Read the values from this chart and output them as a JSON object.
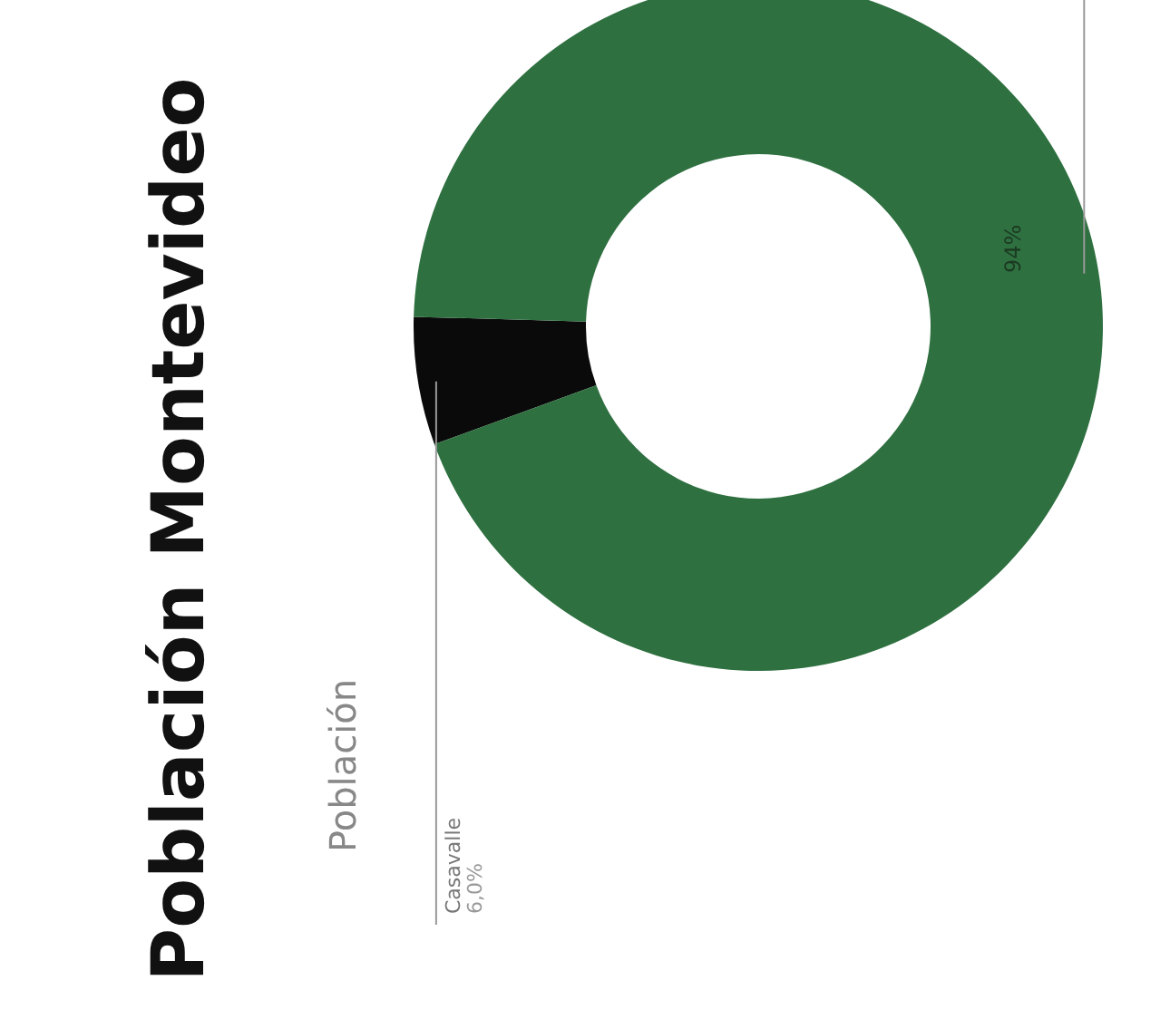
{
  "chart_data": {
    "type": "donut",
    "title": "Población Montevideo",
    "subtitle": "Población",
    "categories": [
      "Casavalle",
      null
    ],
    "values": [
      6,
      94
    ],
    "colors": [
      "#0a0a0a",
      "#2e7040"
    ],
    "value_labels": [
      "6,0%",
      "94%"
    ]
  }
}
